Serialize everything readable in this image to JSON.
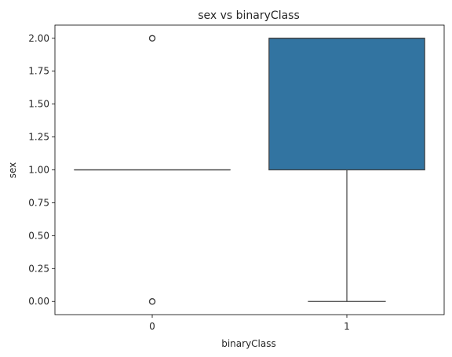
{
  "chart_data": {
    "type": "box",
    "title": "sex vs binaryClass",
    "xlabel": "binaryClass",
    "ylabel": "sex",
    "categories": [
      "0",
      "1"
    ],
    "ylim": [
      -0.1,
      2.1
    ],
    "y_ticks": [
      0.0,
      0.25,
      0.5,
      0.75,
      1.0,
      1.25,
      1.5,
      1.75,
      2.0
    ],
    "y_tick_labels": [
      "0.00",
      "0.25",
      "0.50",
      "0.75",
      "1.00",
      "1.25",
      "1.50",
      "1.75",
      "2.00"
    ],
    "grid": false,
    "legend": "none",
    "boxes": [
      {
        "category": "0",
        "q1": 1.0,
        "median": 1.0,
        "q3": 1.0,
        "whisker_low": 1.0,
        "whisker_high": 1.0,
        "outliers": [
          0.0,
          2.0
        ],
        "color": "#3274a1"
      },
      {
        "category": "1",
        "q1": 1.0,
        "median": 2.0,
        "q3": 2.0,
        "whisker_low": 0.0,
        "whisker_high": 2.0,
        "outliers": [],
        "color": "#3274a1"
      }
    ],
    "line_color": "#3f3f3f"
  }
}
